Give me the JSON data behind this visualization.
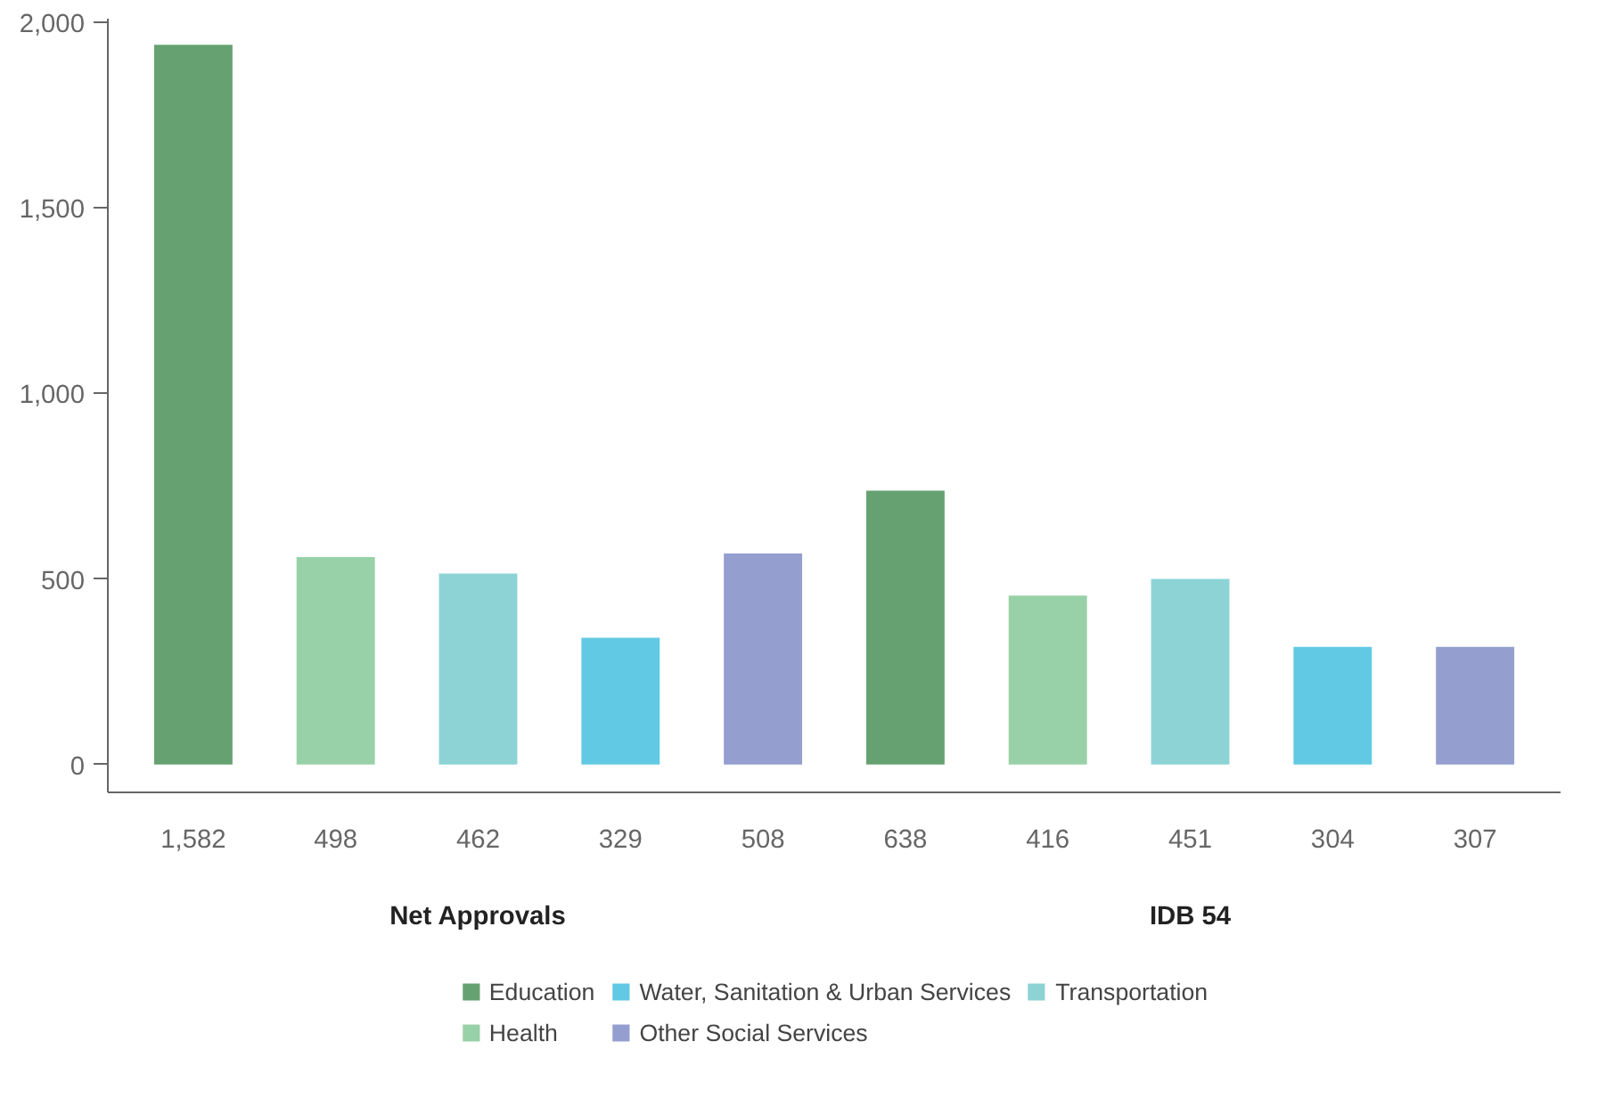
{
  "chart_data": {
    "type": "bar",
    "categories": [
      "1,582",
      "498",
      "462",
      "329",
      "508",
      "638",
      "416",
      "451",
      "304",
      "307"
    ],
    "series": [
      {
        "name": "Education",
        "color": "#66a271",
        "values": [
          1940,
          null,
          null,
          null,
          null,
          738,
          null,
          null,
          null,
          null
        ]
      },
      {
        "name": "Health",
        "color": "#98d1a7",
        "values": [
          null,
          559,
          null,
          null,
          null,
          null,
          455,
          null,
          null,
          null
        ]
      },
      {
        "name": "Water, Sanitation & Urban Services",
        "color": "#62c9e4",
        "values": [
          null,
          null,
          null,
          342,
          null,
          null,
          null,
          null,
          317,
          null
        ]
      },
      {
        "name": "Other Social Services",
        "color": "#949fcf",
        "values": [
          null,
          null,
          null,
          null,
          569,
          null,
          null,
          null,
          null,
          317
        ]
      },
      {
        "name": "Transportation",
        "color": "#8dd3d6",
        "values": [
          null,
          null,
          515,
          null,
          null,
          null,
          null,
          500,
          null,
          null
        ]
      }
    ],
    "ylim": [
      -75,
      2010
    ],
    "yticks": [
      0,
      {
        "value": 500,
        "label": "500"
      },
      {
        "value": 1000,
        "label": "1,000"
      },
      {
        "value": 1500,
        "label": "1,500"
      },
      {
        "value": 2000,
        "label": "2,000"
      }
    ],
    "annotations": [
      "Net Approvals",
      "IDB 54"
    ],
    "grid": false,
    "legend": "bottom"
  }
}
